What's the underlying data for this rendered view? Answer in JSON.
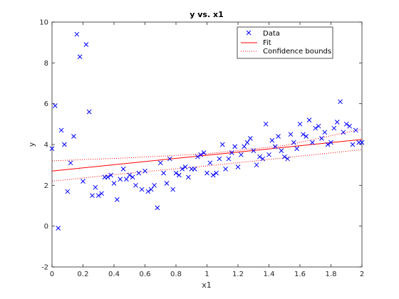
{
  "chart_data": {
    "type": "scatter",
    "title": "y vs. x1",
    "xlabel": "x1",
    "ylabel": "y",
    "xlim": [
      0,
      2
    ],
    "ylim": [
      -2,
      10
    ],
    "x_ticks": [
      "0",
      "0.2",
      "0.4",
      "0.6",
      "0.8",
      "1",
      "1.2",
      "1.4",
      "1.6",
      "1.8",
      "2"
    ],
    "y_ticks": [
      "-2",
      "0",
      "2",
      "4",
      "6",
      "8",
      "10"
    ],
    "grid": false,
    "legend_position": "top-right",
    "legend": [
      "Data",
      "Fit",
      "Confidence bounds"
    ],
    "colors": {
      "data": "#0000ff",
      "fit": "#ff0000",
      "bounds": "#ff0000",
      "axes": "#262626"
    },
    "data": {
      "x": [
        0.0,
        0.02,
        0.04,
        0.06,
        0.08,
        0.1,
        0.12,
        0.14,
        0.16,
        0.18,
        0.2,
        0.22,
        0.24,
        0.26,
        0.28,
        0.3,
        0.32,
        0.34,
        0.36,
        0.38,
        0.4,
        0.42,
        0.44,
        0.46,
        0.48,
        0.5,
        0.52,
        0.54,
        0.56,
        0.58,
        0.6,
        0.62,
        0.64,
        0.66,
        0.68,
        0.7,
        0.72,
        0.74,
        0.76,
        0.78,
        0.8,
        0.82,
        0.84,
        0.86,
        0.88,
        0.9,
        0.92,
        0.94,
        0.96,
        0.98,
        1.0,
        1.02,
        1.04,
        1.06,
        1.08,
        1.1,
        1.12,
        1.14,
        1.16,
        1.18,
        1.2,
        1.22,
        1.24,
        1.26,
        1.28,
        1.3,
        1.32,
        1.34,
        1.36,
        1.38,
        1.4,
        1.42,
        1.44,
        1.46,
        1.48,
        1.5,
        1.52,
        1.54,
        1.56,
        1.58,
        1.6,
        1.62,
        1.64,
        1.66,
        1.68,
        1.7,
        1.72,
        1.74,
        1.76,
        1.78,
        1.8,
        1.82,
        1.84,
        1.86,
        1.88,
        1.9,
        1.92,
        1.94,
        1.96,
        1.98,
        2.0
      ],
      "y": [
        3.8,
        5.9,
        -0.1,
        4.7,
        4.0,
        1.7,
        3.1,
        4.4,
        9.4,
        8.3,
        2.2,
        8.9,
        5.6,
        1.5,
        1.9,
        1.5,
        1.6,
        2.4,
        2.4,
        2.5,
        2.1,
        1.3,
        2.3,
        2.8,
        2.3,
        2.5,
        2.4,
        2.0,
        2.6,
        1.8,
        2.7,
        1.7,
        1.8,
        2.0,
        0.9,
        3.1,
        2.6,
        2.1,
        3.3,
        1.8,
        2.6,
        2.5,
        2.8,
        2.9,
        2.4,
        2.8,
        2.8,
        3.4,
        3.5,
        3.6,
        2.6,
        3.1,
        2.5,
        2.6,
        3.3,
        4.0,
        2.8,
        3.3,
        3.6,
        3.9,
        2.9,
        3.5,
        3.9,
        4.1,
        4.3,
        3.7,
        3.0,
        3.4,
        3.3,
        5.0,
        3.5,
        4.2,
        3.9,
        4.4,
        3.7,
        3.4,
        3.3,
        4.5,
        4.1,
        3.8,
        5.0,
        4.5,
        4.4,
        5.2,
        4.1,
        4.8,
        4.9,
        4.3,
        4.6,
        4.0,
        4.1,
        4.8,
        5.1,
        6.1,
        4.6,
        5.0,
        4.9,
        4.0,
        4.7,
        4.1,
        4.1
      ]
    },
    "fit": {
      "x": [
        0,
        2
      ],
      "y": [
        2.7,
        4.25
      ]
    },
    "bounds_upper": {
      "x": [
        0,
        0.5,
        1,
        1.5,
        2
      ],
      "y": [
        3.2,
        3.35,
        3.55,
        3.95,
        4.75
      ]
    },
    "bounds_lower": {
      "x": [
        0,
        0.5,
        1,
        1.5,
        2
      ],
      "y": [
        2.2,
        2.6,
        2.95,
        3.35,
        3.75
      ]
    }
  }
}
